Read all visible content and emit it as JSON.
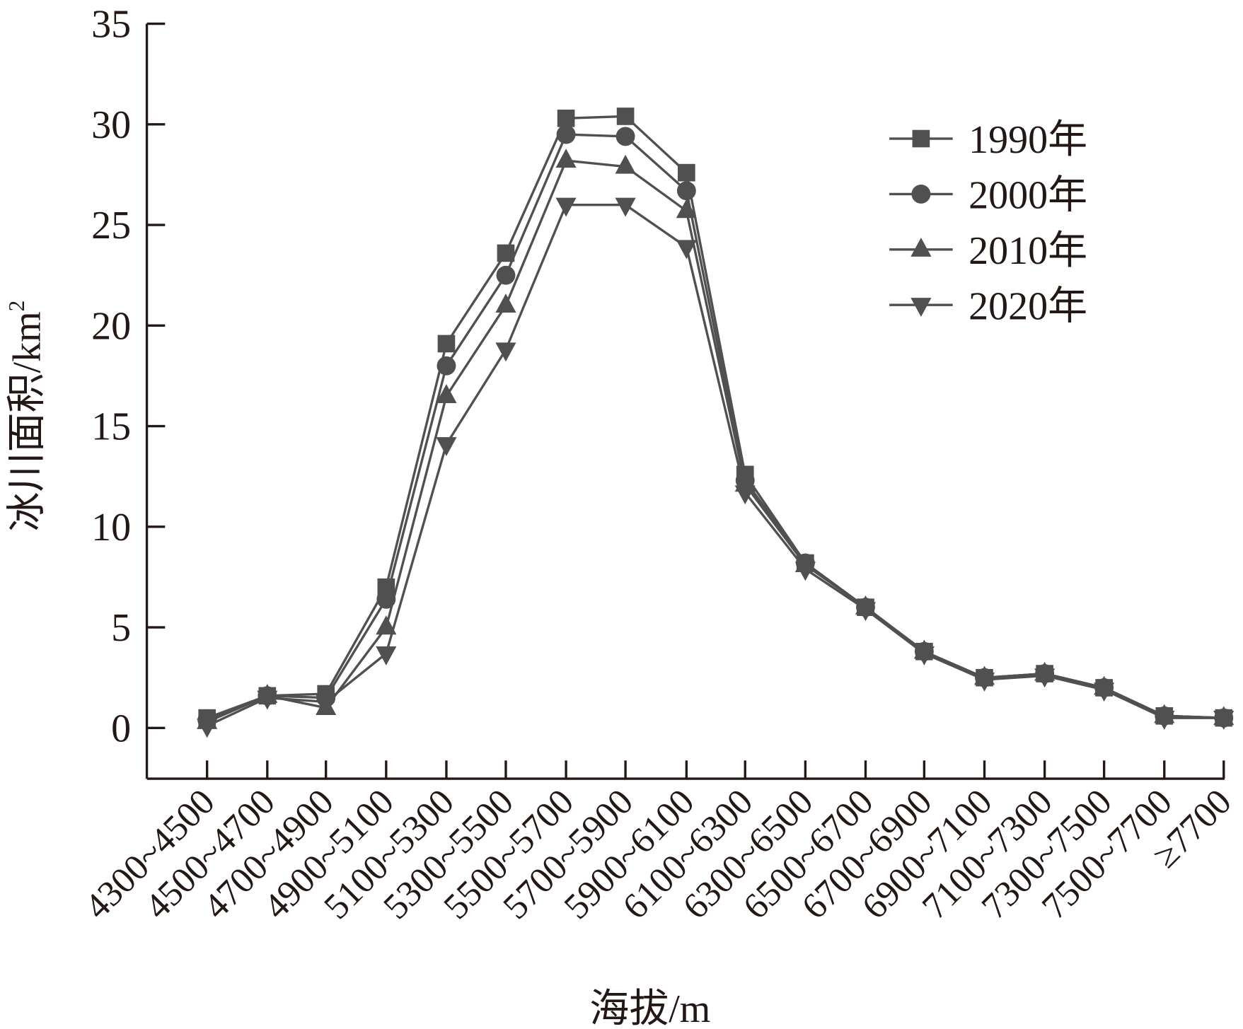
{
  "chart_data": {
    "type": "line",
    "title": "",
    "xlabel": "海拔/m",
    "ylabel": "冰川面积/km²",
    "ylabel_main": "冰川面积/km",
    "ylabel_sup": "2",
    "ylim": [
      -2.5,
      35
    ],
    "yticks": [
      0,
      5,
      10,
      15,
      20,
      25,
      30,
      35
    ],
    "grid": false,
    "legend_position": "top-right",
    "categories": [
      "4300~4500",
      "4500~4700",
      "4700~4900",
      "4900~5100",
      "5100~5300",
      "5300~5500",
      "5500~5700",
      "5700~5900",
      "5900~6100",
      "6100~6300",
      "6300~6500",
      "6500~6700",
      "6700~6900",
      "6900~7100",
      "7100~7300",
      "7300~7500",
      "7500~7700",
      "≥7700"
    ],
    "series": [
      {
        "name": "1990年",
        "marker": "square",
        "values": [
          0.5,
          1.6,
          1.7,
          7.0,
          19.1,
          23.6,
          30.3,
          30.4,
          27.6,
          12.6,
          8.2,
          6.0,
          3.8,
          2.5,
          2.7,
          2.0,
          0.6,
          0.5
        ]
      },
      {
        "name": "2000年",
        "marker": "circle",
        "values": [
          0.4,
          1.6,
          1.5,
          6.4,
          18.0,
          22.5,
          29.5,
          29.4,
          26.7,
          12.3,
          8.2,
          6.0,
          3.8,
          2.5,
          2.7,
          2.0,
          0.6,
          0.5
        ]
      },
      {
        "name": "2010年",
        "marker": "triangle-up",
        "values": [
          0.3,
          1.6,
          1.0,
          5.0,
          16.5,
          21.0,
          28.2,
          27.9,
          25.7,
          12.1,
          8.1,
          6.0,
          3.8,
          2.5,
          2.7,
          2.0,
          0.6,
          0.5
        ]
      },
      {
        "name": "2020年",
        "marker": "triangle-down",
        "values": [
          0.1,
          1.5,
          1.3,
          3.7,
          14.1,
          18.8,
          26.0,
          26.0,
          23.9,
          11.7,
          7.9,
          5.9,
          3.7,
          2.4,
          2.6,
          1.9,
          0.5,
          0.5
        ]
      }
    ],
    "colors": {
      "series": "#505050",
      "axis": "#231815"
    }
  }
}
